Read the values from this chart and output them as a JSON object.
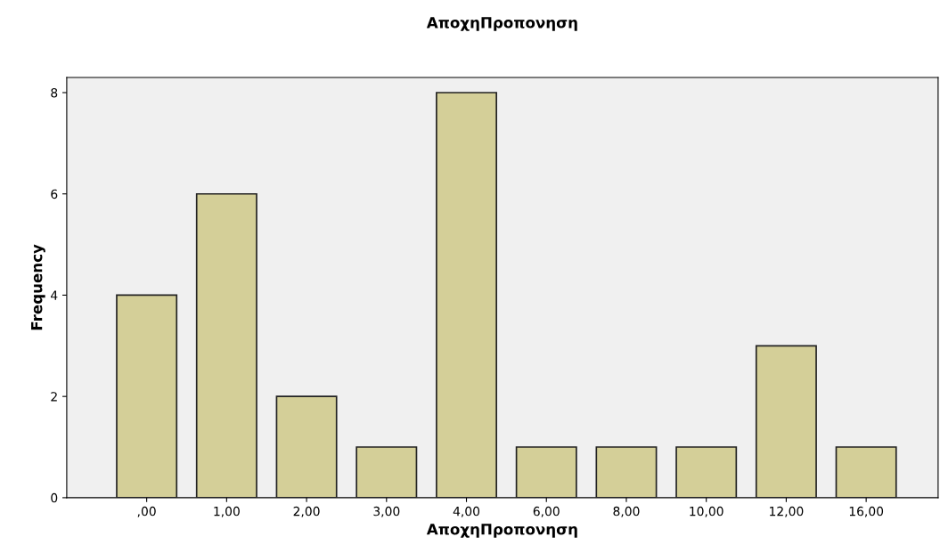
{
  "chart_data": {
    "type": "bar",
    "title": "ΑποχηΠροπονηση",
    "xlabel": "ΑποχηΠροπονηση",
    "ylabel": "Frequency",
    "categories": [
      ",00",
      "1,00",
      "2,00",
      "3,00",
      "4,00",
      "6,00",
      "8,00",
      "10,00",
      "12,00",
      "16,00"
    ],
    "values": [
      4,
      6,
      2,
      1,
      8,
      1,
      1,
      1,
      3,
      1
    ],
    "color": "#d4cf98",
    "ylim": [
      0,
      8.3
    ],
    "yticks": [
      0,
      2,
      4,
      6,
      8
    ],
    "grid": false
  }
}
